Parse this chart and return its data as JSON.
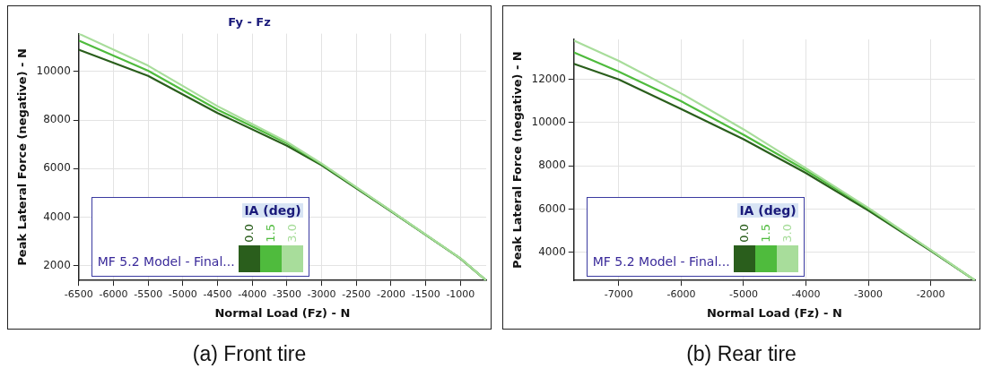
{
  "chart_data": [
    {
      "type": "line",
      "title": "Fy - Fz",
      "xlabel": "Normal Load (Fz) - N",
      "ylabel": "Peak Lateral Force (negative) - N",
      "legend_title": "IA (deg)",
      "legend": "bottom left",
      "grid": true,
      "marker": "none",
      "line_style": "solid",
      "xlim": [
        -6500,
        -630
      ],
      "xticks": [
        -6500,
        -6000,
        -5500,
        -5000,
        -4500,
        -4000,
        -3500,
        -3000,
        -2500,
        -2000,
        -1500,
        -1000
      ],
      "ylim": [
        1390,
        11560
      ],
      "yticks": [
        2000,
        4000,
        6000,
        8000,
        10000
      ],
      "x": [
        -6500,
        -5500,
        -4500,
        -3500,
        -3000,
        -2000,
        -1000,
        -630
      ],
      "series": [
        {
          "name": "0.0",
          "color": "#2a5e1c",
          "values": [
            10900,
            9820,
            8290,
            6940,
            6140,
            4240,
            2290,
            1390
          ]
        },
        {
          "name": "1.5",
          "color": "#4fbb3d",
          "values": [
            11280,
            10030,
            8430,
            7040,
            6180,
            4250,
            2300,
            1390
          ]
        },
        {
          "name": "3.0",
          "color": "#a8dd9b",
          "values": [
            11560,
            10240,
            8570,
            7100,
            6210,
            4260,
            2300,
            1390
          ]
        }
      ],
      "annotations": [
        "MF 5.2 Model - Final...",
        "(a) Front tire"
      ]
    },
    {
      "type": "line",
      "xlabel": "Normal Load (Fz) - N",
      "ylabel": "Peak Lateral Force (negative) - N",
      "legend_title": "IA (deg)",
      "legend": "bottom left",
      "grid": true,
      "marker": "none",
      "line_style": "solid",
      "xlim": [
        -7720,
        -1290
      ],
      "xticks": [
        -7000,
        -6000,
        -5000,
        -4000,
        -3000,
        -2000
      ],
      "ylim": [
        2700,
        13850
      ],
      "yticks": [
        4000,
        6000,
        8000,
        10000,
        12000
      ],
      "x": [
        -7720,
        -7000,
        -6000,
        -5000,
        -4000,
        -3000,
        -2000,
        -1290
      ],
      "series": [
        {
          "name": "0.0",
          "color": "#2a5e1c",
          "values": [
            12720,
            12000,
            10630,
            9230,
            7670,
            5940,
            4070,
            2700
          ]
        },
        {
          "name": "1.5",
          "color": "#4fbb3d",
          "values": [
            13250,
            12360,
            10990,
            9440,
            7790,
            6020,
            4100,
            2700
          ]
        },
        {
          "name": "3.0",
          "color": "#a8dd9b",
          "values": [
            13800,
            12860,
            11350,
            9690,
            7890,
            6060,
            4110,
            2700
          ]
        }
      ],
      "annotations": [
        "MF 5.2 Model - Final...",
        "(b) Rear tire"
      ]
    }
  ]
}
